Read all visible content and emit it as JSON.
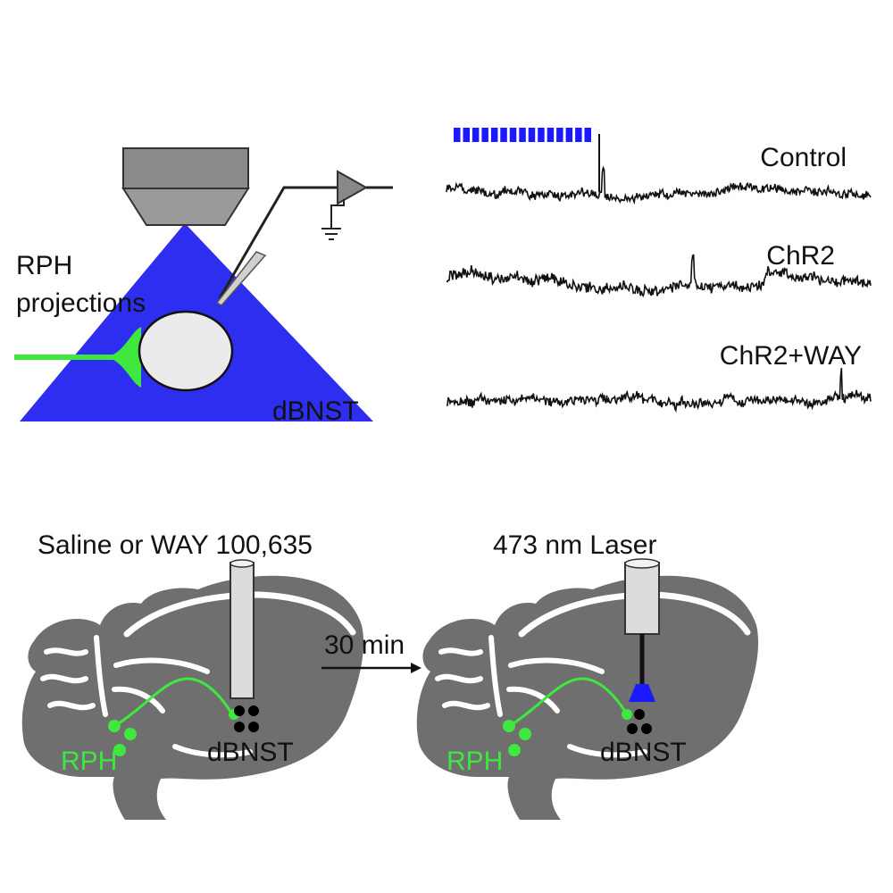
{
  "top_panel": {
    "label_rph": "RPH",
    "label_projections": "projections",
    "label_region": "dBNST",
    "traces": [
      {
        "label": "Control",
        "seed": 11,
        "noise": 9,
        "drift": 4,
        "spike_at": 0.37
      },
      {
        "label": "ChR2",
        "seed": 29,
        "noise": 11,
        "drift": 7,
        "spike_at": 0.58
      },
      {
        "label": "ChR2+WAY",
        "seed": 47,
        "noise": 10,
        "drift": 3,
        "spike_at": 0.93
      }
    ],
    "light_stimulus": {
      "pulses": 15,
      "color": "#1a1aff"
    }
  },
  "bottom_panel": {
    "left_title": "Saline or WAY 100,635",
    "right_title": "473 nm Laser",
    "arrow_label": "30 min",
    "region_left": "RPH",
    "region_right": "dBNST"
  },
  "colors": {
    "illumination": "#2e2ef0",
    "projection": "#3ee83e",
    "brain": "#6f6f6f",
    "laser_tip": "#1a1aff"
  }
}
